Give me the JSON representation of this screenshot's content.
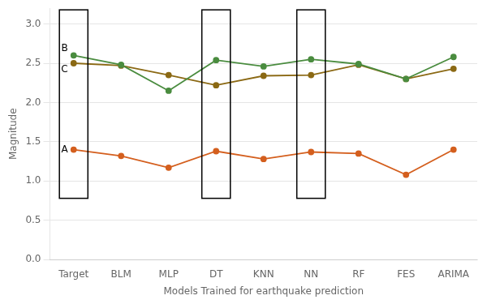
{
  "chart_data": {
    "type": "line",
    "categories": [
      "Target",
      "BLM",
      "MLP",
      "DT",
      "KNN",
      "NN",
      "RF",
      "FES",
      "ARIMA"
    ],
    "series": [
      {
        "name": "B",
        "color": "#4a8c3f",
        "marker": "circle",
        "values": [
          2.6,
          2.48,
          2.15,
          2.54,
          2.46,
          2.55,
          2.49,
          2.3,
          2.58
        ]
      },
      {
        "name": "C",
        "color": "#8b6914",
        "marker": "circle",
        "values": [
          2.5,
          2.47,
          2.35,
          2.22,
          2.34,
          2.35,
          2.48,
          2.3,
          2.43
        ]
      },
      {
        "name": "A",
        "color": "#d45f1e",
        "marker": "circle",
        "values": [
          1.4,
          1.32,
          1.17,
          1.38,
          1.28,
          1.37,
          1.35,
          1.08,
          1.4
        ]
      }
    ],
    "xlabel": "Models Trained for earthquake prediction",
    "ylabel": "Magnitude",
    "ylim": [
      0,
      3.2
    ],
    "yticks": [
      {
        "value": 0,
        "label": "0.0"
      },
      0.5,
      {
        "value": 1,
        "label": "1.0"
      },
      1.5,
      {
        "value": 2,
        "label": "2.0"
      },
      2.5,
      {
        "value": 3,
        "label": "3.0"
      }
    ],
    "grid": true,
    "boxes": {
      "categories": [
        "Target",
        "DT",
        "NN"
      ],
      "y_bottom": 0.78,
      "y_top": 3.18
    }
  }
}
